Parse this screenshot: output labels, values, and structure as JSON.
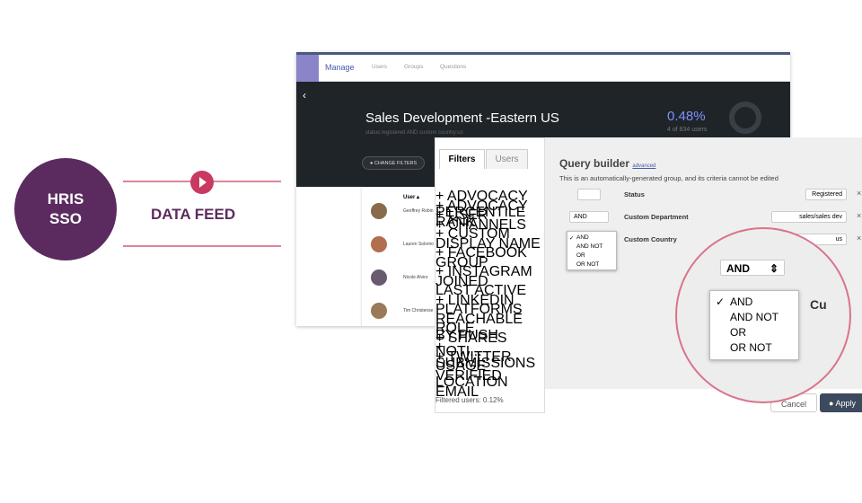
{
  "slide": {
    "badge": [
      "HRIS",
      "SSO"
    ],
    "label": "DATA FEED"
  },
  "manage": {
    "nav": [
      "Manage",
      "Users",
      "Groups",
      "Questions"
    ],
    "title": "Sales Development -Eastern US",
    "subtitle": "status:registered AND custom country:us",
    "stat": "0.48%",
    "stat_note": "4 of 834 users",
    "button": "CHANGE FILTERS",
    "column": "User",
    "users": [
      "Geoffrey Robin",
      "Lauren Solomo",
      "Nicole Alviro",
      "Tim Christense"
    ]
  },
  "filters": {
    "tabs": [
      "Filters",
      "Users"
    ],
    "items": [
      "+ ADVOCACY PERCENTILE",
      "+ ADVOCACY RANK",
      "+ USER",
      "+ CHANNELS",
      "+ CUSTOM",
      "DISPLAY NAME",
      "+ FACEBOOK",
      "GROUP",
      "+ INSTAGRAM",
      "JOINED",
      "LAST ACTIVE",
      "+ LINKEDIN",
      "PLATFORMS",
      "REACHABLE BY PUSH NOTI...",
      "ROLE",
      "+ SHARES",
      "+ SUBMISSIONS",
      "+ TWITTER",
      "USAGE LOCATION",
      "VERIFIED EMAIL"
    ],
    "footer": "Filtered users: 0.12%"
  },
  "query": {
    "title": "Query builder",
    "link": "advanced",
    "note": "This is an automatically-generated group, and its criteria cannot be edited",
    "rows": [
      {
        "field": "Status",
        "value": "Registered"
      },
      {
        "operator": "AND",
        "field": "Custom Department",
        "value": "sales/sales dev"
      },
      {
        "field": "Custom Country",
        "value": "us"
      }
    ],
    "options": [
      "AND",
      "AND NOT",
      "OR",
      "OR NOT"
    ],
    "zoom_select": "AND",
    "zoom_field": "Cu",
    "cancel": "Cancel",
    "apply": "Apply"
  }
}
